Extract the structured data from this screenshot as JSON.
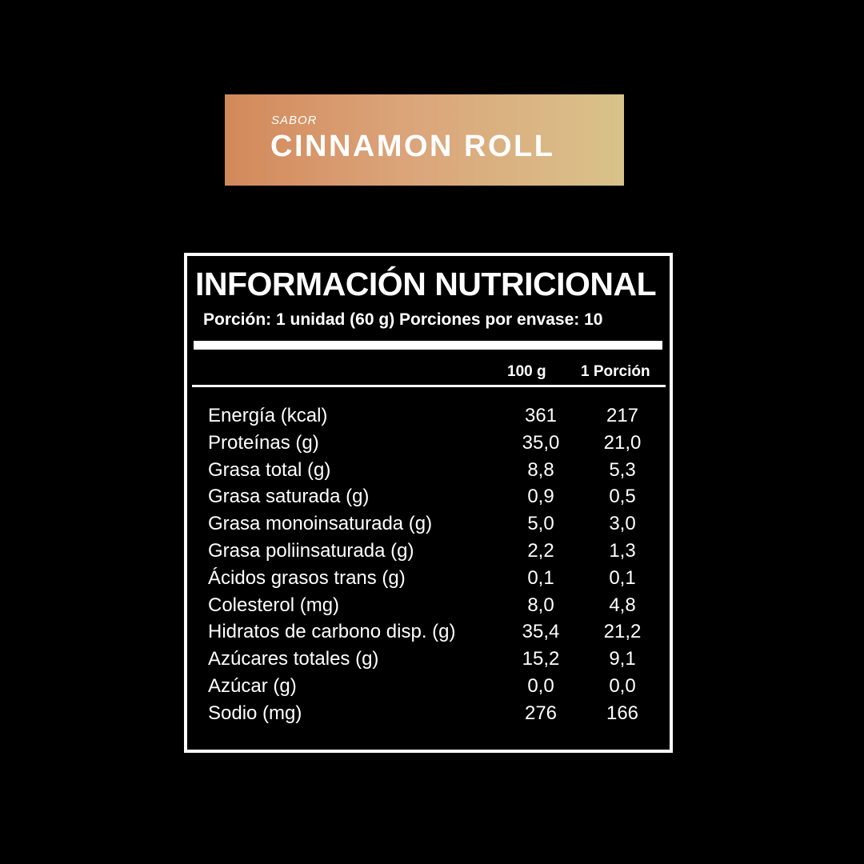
{
  "banner": {
    "label": "SABOR",
    "title": "CINNAMON ROLL"
  },
  "table": {
    "title": "INFORMACIÓN NUTRICIONAL",
    "serving": "Porción: 1 unidad (60 g) Porciones por envase: 10",
    "columns": [
      "100 g",
      "1 Porción"
    ],
    "rows": [
      [
        "Energía (kcal)",
        "361",
        "217"
      ],
      [
        "Proteínas (g)",
        "35,0",
        "21,0"
      ],
      [
        "Grasa total (g)",
        "8,8",
        "5,3"
      ],
      [
        "Grasa saturada (g)",
        "0,9",
        "0,5"
      ],
      [
        "Grasa monoinsaturada (g)",
        "5,0",
        "3,0"
      ],
      [
        "Grasa poliinsaturada (g)",
        "2,2",
        "1,3"
      ],
      [
        "Ácidos grasos trans (g)",
        "0,1",
        "0,1"
      ],
      [
        "Colesterol (mg)",
        "8,0",
        "4,8"
      ],
      [
        "Hidratos de carbono disp. (g)",
        "35,4",
        "21,2"
      ],
      [
        "Azúcares totales (g)",
        "15,2",
        "9,1"
      ],
      [
        "Azúcar (g)",
        "0,0",
        "0,0"
      ],
      [
        "Sodio (mg)",
        "276",
        "166"
      ]
    ]
  }
}
